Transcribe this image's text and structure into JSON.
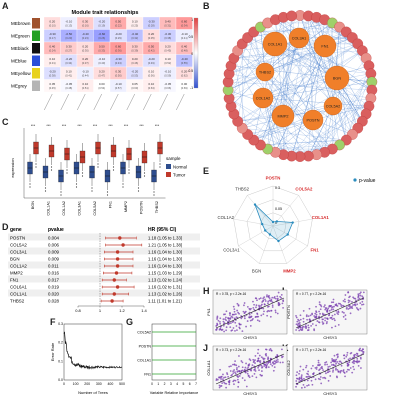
{
  "panels": [
    "A",
    "B",
    "C",
    "D",
    "E",
    "F",
    "G",
    "H",
    "I",
    "J",
    "K"
  ],
  "panel_a": {
    "title": "Module trait relationships",
    "rows": [
      "MEbrown",
      "MEgreen",
      "MEblack",
      "MEblue",
      "MEyellow",
      "MEgrey"
    ],
    "row_colors": [
      "#a0522d",
      "#22a022",
      "#111111",
      "#2b4fd8",
      "#e8d21e",
      "#b5b5b5"
    ],
    "colorbar_labels": [
      "1",
      "0.5",
      "0",
      "-0.5",
      "-1"
    ]
  },
  "panel_b": {
    "hub_genes": [
      "COL1A1",
      "COL3A1",
      "FN1",
      "THBS2",
      "BGN",
      "COL1A2",
      "COL5A2",
      "MMP2",
      "POSTN"
    ]
  },
  "panel_c": {
    "ylabel": "expression",
    "legend_title": "sample",
    "legend": [
      {
        "name": "Normal",
        "color": "#2e4d8e"
      },
      {
        "name": "Tumor",
        "color": "#c0392b"
      }
    ],
    "genes": [
      "BGN",
      "COL1A1",
      "COL1A2",
      "COL3A1",
      "COL5A2",
      "FN1",
      "MMP2",
      "POSTN",
      "THBS2"
    ],
    "sig": "***"
  },
  "panel_d": {
    "headers": [
      "gene",
      "pvalue",
      "HR (95% CI)"
    ],
    "rows": [
      {
        "gene": "POSTN",
        "p": "0.004",
        "hr": "1.18 (1.05 to 1.33)",
        "v": 1.18,
        "lo": 1.05,
        "hi": 1.33
      },
      {
        "gene": "COL5A2",
        "p": "0.006",
        "hr": "1.21 (1.05 to 1.38)",
        "v": 1.21,
        "lo": 1.05,
        "hi": 1.38
      },
      {
        "gene": "COL3A1",
        "p": "0.009",
        "hr": "1.16 (1.04 to 1.30)",
        "v": 1.16,
        "lo": 1.04,
        "hi": 1.3
      },
      {
        "gene": "BGN",
        "p": "0.009",
        "hr": "1.16 (1.04 to 1.30)",
        "v": 1.16,
        "lo": 1.04,
        "hi": 1.3
      },
      {
        "gene": "COL1A2",
        "p": "0.011",
        "hr": "1.16 (1.04 to 1.30)",
        "v": 1.16,
        "lo": 1.04,
        "hi": 1.3
      },
      {
        "gene": "MMP2",
        "p": "0.016",
        "hr": "1.15 (1.03 to 1.29)",
        "v": 1.15,
        "lo": 1.03,
        "hi": 1.29
      },
      {
        "gene": "FN1",
        "p": "0.017",
        "hr": "1.13 (1.02 to 1.24)",
        "v": 1.13,
        "lo": 1.02,
        "hi": 1.24
      },
      {
        "gene": "COL6A1",
        "p": "0.019",
        "hr": "1.16 (1.02 to 1.31)",
        "v": 1.16,
        "lo": 1.02,
        "hi": 1.31
      },
      {
        "gene": "COL1A1",
        "p": "0.020",
        "hr": "1.13 (1.02 to 1.26)",
        "v": 1.13,
        "lo": 1.02,
        "hi": 1.26
      },
      {
        "gene": "THBS2",
        "p": "0.028",
        "hr": "1.11 (1.01 to 1.21)",
        "v": 1.11,
        "lo": 1.01,
        "hi": 1.21
      }
    ],
    "axis_ticks": [
      "0.8",
      "1",
      "1.2",
      "1.4"
    ]
  },
  "panel_e": {
    "legend": "p-value",
    "labels": [
      "POSTN",
      "COL5A2",
      "COL1A1",
      "FN1",
      "MMP2",
      "BGN",
      "COL3A1",
      "COL1A2",
      "THBS2"
    ],
    "values": [
      0.004,
      0.006,
      0.02,
      0.017,
      0.016,
      0.009,
      0.009,
      0.011,
      0.028
    ],
    "ring_labels": [
      "0.3",
      "0.05",
      "0"
    ]
  },
  "panel_f": {
    "xlabel": "Number of Trees",
    "ylabel": "Error Rate",
    "x_ticks": [
      "0",
      "100",
      "200",
      "300",
      "400",
      "500"
    ],
    "y_ticks": [
      "0.0",
      "0.1",
      "0.2",
      "0.3"
    ]
  },
  "panel_g": {
    "genes": [
      "COL5A2",
      "POSTN",
      "COL1A1",
      "FN1"
    ],
    "xlabel": "Variable Relative Importance",
    "x_ticks": [
      "0",
      "1",
      "2",
      "3",
      "4",
      "5",
      "6",
      "7"
    ]
  },
  "scatters": [
    {
      "letter": "H",
      "ylabel": "FN1",
      "xlabel": "CHSY3",
      "stat": "R = 0.78, p < 2.2e-16"
    },
    {
      "letter": "I",
      "ylabel": "POSTN",
      "xlabel": "CHSY3",
      "stat": "R = 0.77, p < 2.2e-16"
    },
    {
      "letter": "J",
      "ylabel": "COL1A1",
      "xlabel": "CHSY3",
      "stat": "R = 0.73, p < 2.2e-16"
    },
    {
      "letter": "K",
      "ylabel": "COL5A2",
      "xlabel": "CHSY3",
      "stat": "R = 0.77, p < 2.2e-16"
    }
  ]
}
